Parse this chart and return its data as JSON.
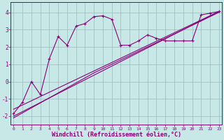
{
  "bg_color": "#c8e8e8",
  "line_color": "#880077",
  "grid_color": "#99bbbb",
  "xlabel": "Windchill (Refroidissement éolien,°C)",
  "xlim": [
    -0.3,
    23.3
  ],
  "ylim": [
    -2.5,
    4.6
  ],
  "yticks": [
    -2,
    -1,
    0,
    1,
    2,
    3,
    4
  ],
  "xticks": [
    0,
    1,
    2,
    3,
    4,
    5,
    6,
    7,
    8,
    9,
    10,
    11,
    12,
    13,
    14,
    15,
    16,
    17,
    18,
    19,
    20,
    21,
    22,
    23
  ],
  "zigzag_x": [
    0,
    1,
    2,
    3,
    4,
    5,
    6,
    7,
    8,
    9,
    10,
    11,
    12,
    13,
    14,
    15,
    16,
    17,
    18,
    19,
    20,
    21,
    22,
    23
  ],
  "zigzag_y": [
    -1.85,
    -1.2,
    0.0,
    -0.75,
    1.3,
    2.6,
    2.1,
    3.2,
    3.35,
    3.75,
    3.8,
    3.6,
    2.1,
    2.1,
    2.35,
    2.7,
    2.5,
    2.35,
    2.35,
    2.35,
    2.35,
    3.85,
    3.95,
    4.05
  ],
  "line1_x": [
    0,
    23
  ],
  "line1_y": [
    -2.0,
    4.05
  ],
  "line2_x": [
    0,
    23
  ],
  "line2_y": [
    -1.6,
    4.05
  ],
  "line3_x": [
    0,
    9,
    23
  ],
  "line3_y": [
    -2.1,
    0.5,
    4.0
  ]
}
